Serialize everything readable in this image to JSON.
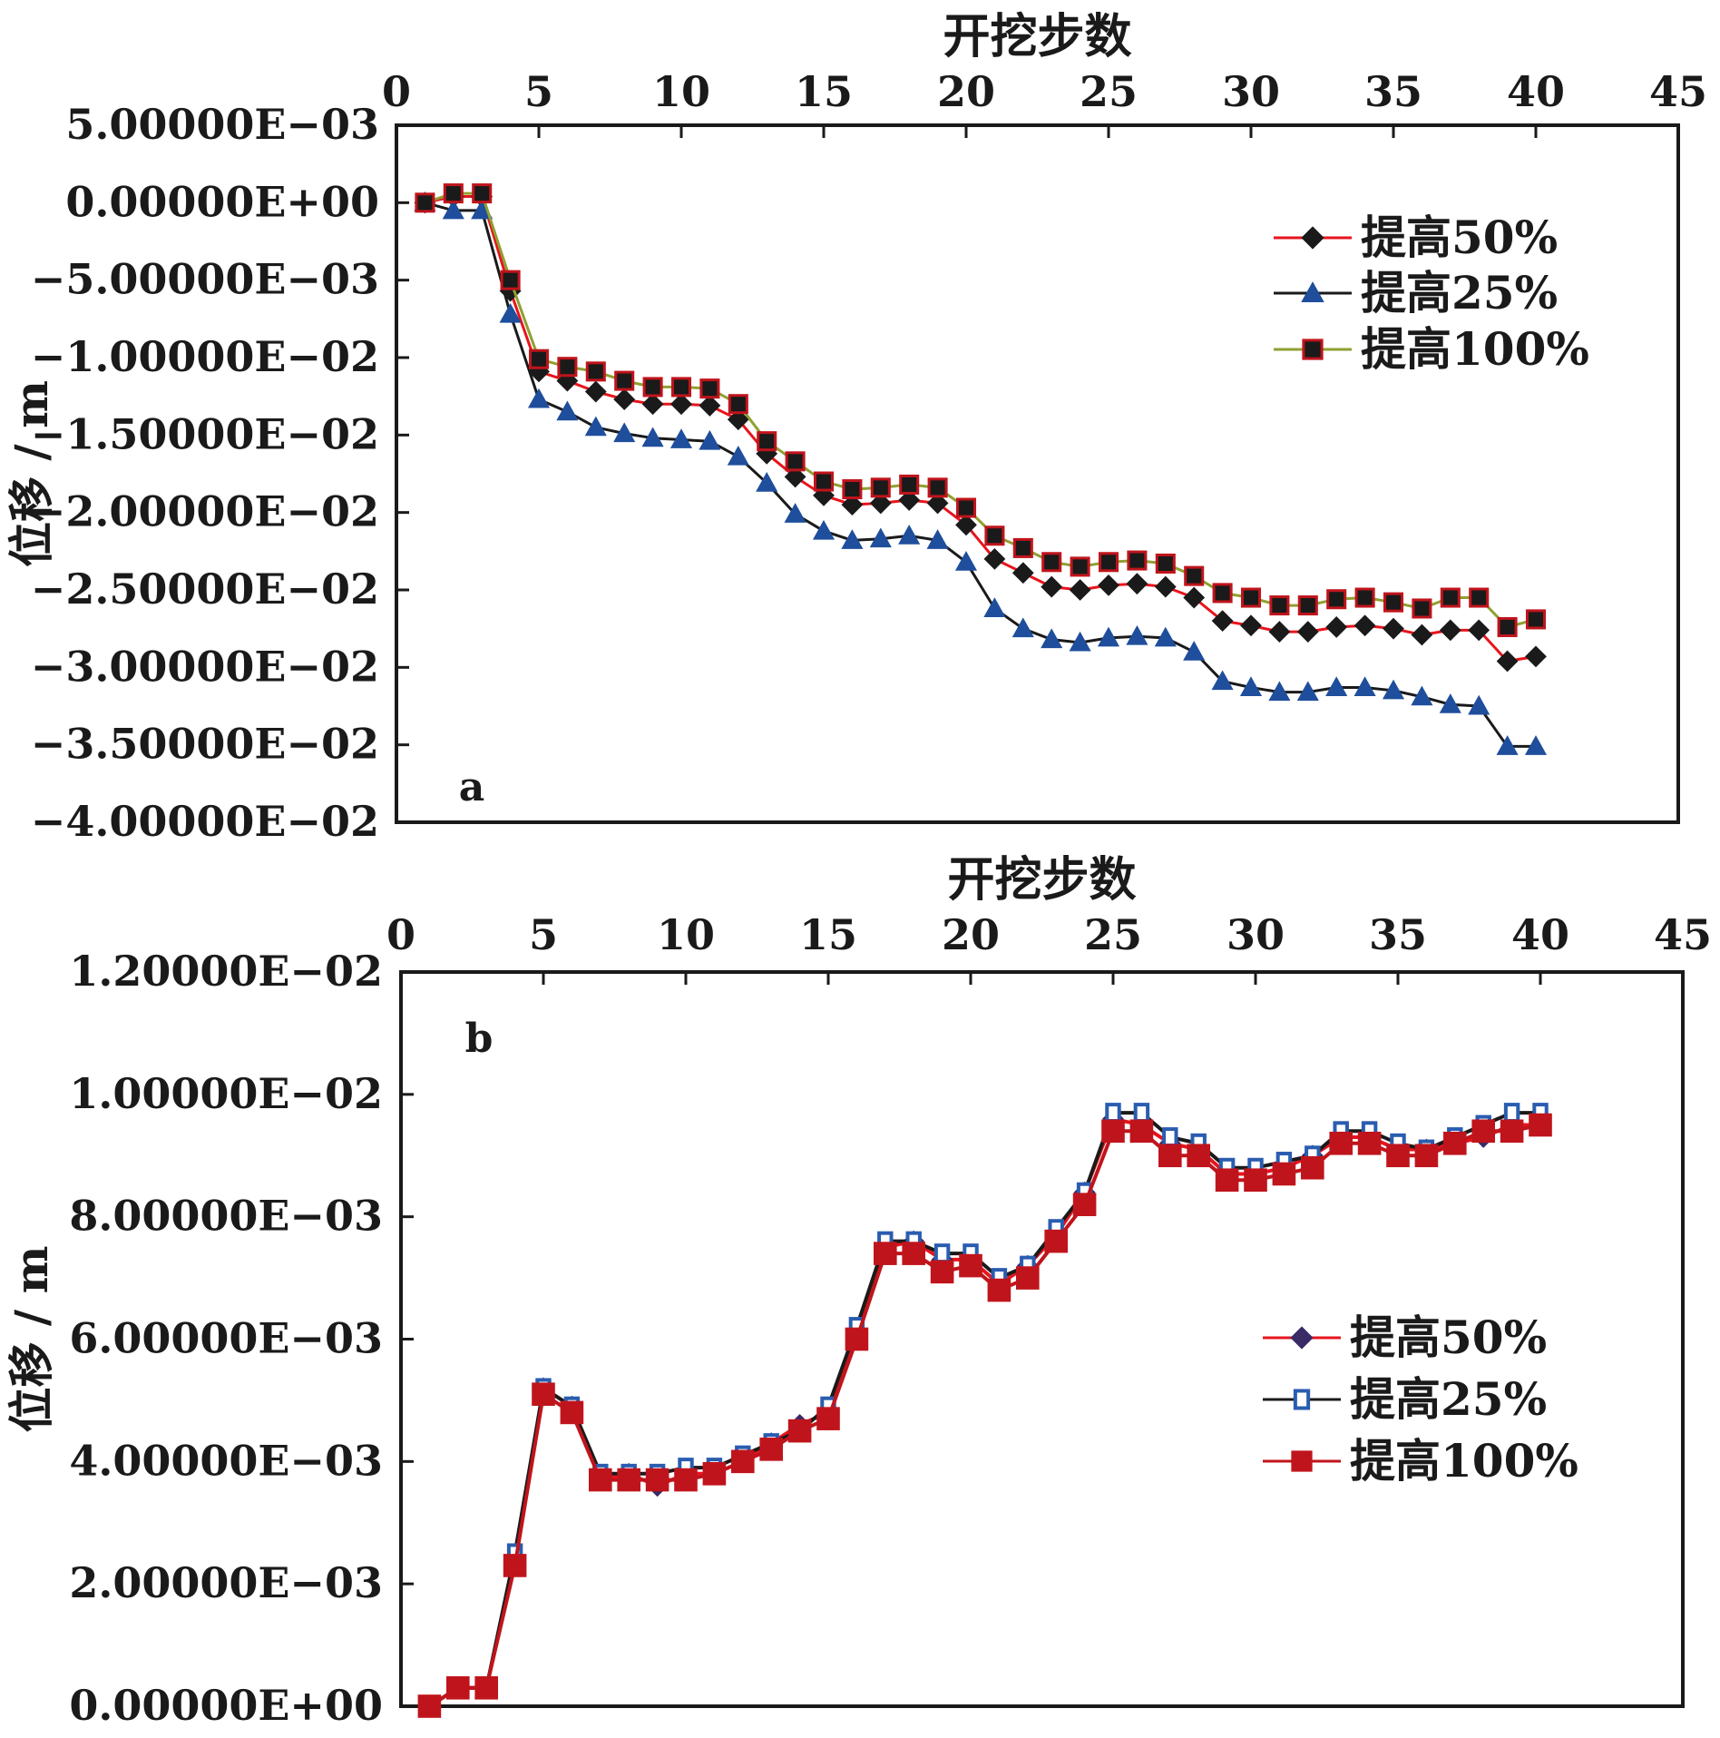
{
  "chart_data": [
    {
      "panel_label": "a",
      "type": "line",
      "xlabel": "开挖步数",
      "ylabel": "位移 / m",
      "x_axis_position": "top",
      "xlim": [
        0,
        45
      ],
      "xticks": [
        0,
        5,
        10,
        15,
        20,
        25,
        30,
        35,
        40,
        45
      ],
      "ylim": [
        -0.04,
        0.005
      ],
      "yticks": [
        0.005,
        0,
        -0.005,
        -0.01,
        -0.015,
        -0.02,
        -0.025,
        -0.03,
        -0.035,
        -0.04
      ],
      "ytick_labels": [
        "5.00000E−03",
        "0.00000E+00",
        "−5.00000E−03",
        "−1.00000E−02",
        "−1.50000E−02",
        "−2.00000E−02",
        "−2.50000E−02",
        "−3.00000E−02",
        "−3.50000E−02",
        "−4.00000E−02"
      ],
      "grid": false,
      "legend_position": "top-right",
      "x": [
        1,
        2,
        3,
        4,
        5,
        6,
        7,
        8,
        9,
        10,
        11,
        12,
        13,
        14,
        15,
        16,
        17,
        18,
        19,
        20,
        21,
        22,
        23,
        24,
        25,
        26,
        27,
        28,
        29,
        30,
        31,
        32,
        33,
        34,
        35,
        36,
        37,
        38,
        39,
        40
      ],
      "series": [
        {
          "name": "提高50%",
          "color": "#e8141c",
          "marker": "diamond",
          "marker_color": "#1a1a1a",
          "values": [
            0,
            0.0004,
            0.0004,
            -0.0057,
            -0.0109,
            -0.0115,
            -0.0122,
            -0.0127,
            -0.013,
            -0.013,
            -0.0131,
            -0.014,
            -0.0162,
            -0.0177,
            -0.0189,
            -0.0195,
            -0.0194,
            -0.0192,
            -0.0194,
            -0.0208,
            -0.023,
            -0.0239,
            -0.0248,
            -0.025,
            -0.0247,
            -0.0246,
            -0.0248,
            -0.0255,
            -0.027,
            -0.0273,
            -0.0277,
            -0.0277,
            -0.0274,
            -0.0273,
            -0.0275,
            -0.0279,
            -0.0276,
            -0.0276,
            -0.0296,
            -0.0293
          ]
        },
        {
          "name": "提高25%",
          "color": "#1a1a1a",
          "marker": "triangle",
          "marker_color": "#1f4e9c",
          "values": [
            0,
            -0.0005,
            -0.0005,
            -0.0072,
            -0.0127,
            -0.0135,
            -0.0145,
            -0.0149,
            -0.0152,
            -0.0153,
            -0.0154,
            -0.0164,
            -0.0181,
            -0.0201,
            -0.0212,
            -0.0218,
            -0.0217,
            -0.0215,
            -0.0218,
            -0.0232,
            -0.0262,
            -0.0275,
            -0.0282,
            -0.0284,
            -0.0281,
            -0.028,
            -0.0281,
            -0.029,
            -0.0309,
            -0.0313,
            -0.0316,
            -0.0316,
            -0.0313,
            -0.0313,
            -0.0315,
            -0.0319,
            -0.0324,
            -0.0325,
            -0.0351,
            -0.0351
          ]
        },
        {
          "name": "提高100%",
          "color": "#8fa032",
          "marker": "square",
          "marker_color": "#1a1a1a",
          "marker_edge": "#c0141c",
          "values": [
            0,
            0.0006,
            0.0006,
            -0.005,
            -0.0101,
            -0.0106,
            -0.0109,
            -0.0115,
            -0.0119,
            -0.0119,
            -0.012,
            -0.013,
            -0.0154,
            -0.0167,
            -0.018,
            -0.0185,
            -0.0184,
            -0.0182,
            -0.0184,
            -0.0197,
            -0.0215,
            -0.0223,
            -0.0232,
            -0.0235,
            -0.0232,
            -0.0231,
            -0.0233,
            -0.0241,
            -0.0252,
            -0.0255,
            -0.026,
            -0.026,
            -0.0256,
            -0.0255,
            -0.0258,
            -0.0262,
            -0.0255,
            -0.0255,
            -0.0274,
            -0.0269
          ]
        }
      ]
    },
    {
      "panel_label": "b",
      "type": "line",
      "xlabel": "开挖步数",
      "ylabel": "位移 / m",
      "x_axis_position": "top",
      "xlim": [
        0,
        45
      ],
      "xticks": [
        0,
        5,
        10,
        15,
        20,
        25,
        30,
        35,
        40,
        45
      ],
      "ylim": [
        0,
        0.012
      ],
      "yticks": [
        0.012,
        0.01,
        0.008,
        0.006,
        0.004,
        0.002,
        0
      ],
      "ytick_labels": [
        "1.20000E−02",
        "1.00000E−02",
        "8.00000E−03",
        "6.00000E−03",
        "4.00000E−03",
        "2.00000E−03",
        "0.00000E+00"
      ],
      "grid": false,
      "legend_position": "right",
      "x": [
        1,
        2,
        3,
        4,
        5,
        6,
        7,
        8,
        9,
        10,
        11,
        12,
        13,
        14,
        15,
        16,
        17,
        18,
        19,
        20,
        21,
        22,
        23,
        24,
        25,
        26,
        27,
        28,
        29,
        30,
        31,
        32,
        33,
        34,
        35,
        36,
        37,
        38,
        39,
        40
      ],
      "series": [
        {
          "name": "提高50%",
          "color": "#e8141c",
          "marker": "diamond",
          "marker_color": "#3a2a66",
          "values": [
            0,
            0.0003,
            0.0003,
            0.0024,
            0.0052,
            0.0049,
            0.0037,
            0.0038,
            0.0036,
            0.0038,
            0.0038,
            0.004,
            0.0043,
            0.0046,
            0.0048,
            0.0061,
            0.0075,
            0.0076,
            0.0073,
            0.0073,
            0.0069,
            0.0072,
            0.0077,
            0.0084,
            0.0096,
            0.0095,
            0.0092,
            0.0091,
            0.0087,
            0.0087,
            0.0088,
            0.009,
            0.0093,
            0.0093,
            0.0091,
            0.0091,
            0.0092,
            0.0093,
            0.0095,
            0.0095
          ]
        },
        {
          "name": "提高25%",
          "color": "#1a1a1a",
          "marker": "square-open",
          "marker_color": "#2a5db0",
          "values": [
            0,
            0.0003,
            0.0003,
            0.0025,
            0.0052,
            0.0049,
            0.0038,
            0.0038,
            0.0038,
            0.0039,
            0.0039,
            0.0041,
            0.0043,
            0.0045,
            0.0049,
            0.0062,
            0.0076,
            0.0076,
            0.0074,
            0.0074,
            0.007,
            0.0072,
            0.0078,
            0.0084,
            0.0097,
            0.0097,
            0.0093,
            0.0092,
            0.0088,
            0.0088,
            0.0089,
            0.009,
            0.0094,
            0.0094,
            0.0092,
            0.0091,
            0.0093,
            0.0095,
            0.0097,
            0.0097
          ]
        },
        {
          "name": "提高100%",
          "color": "#c0141c",
          "marker": "square",
          "marker_color": "#c0141c",
          "values": [
            0,
            0.0003,
            0.0003,
            0.0023,
            0.0051,
            0.0048,
            0.0037,
            0.0037,
            0.0037,
            0.0037,
            0.0038,
            0.004,
            0.0042,
            0.0045,
            0.0047,
            0.006,
            0.0074,
            0.0074,
            0.0071,
            0.0072,
            0.0068,
            0.007,
            0.0076,
            0.0082,
            0.0094,
            0.0094,
            0.009,
            0.009,
            0.0086,
            0.0086,
            0.0087,
            0.0088,
            0.0092,
            0.0092,
            0.009,
            0.009,
            0.0092,
            0.0094,
            0.0094,
            0.0095
          ]
        }
      ]
    }
  ]
}
